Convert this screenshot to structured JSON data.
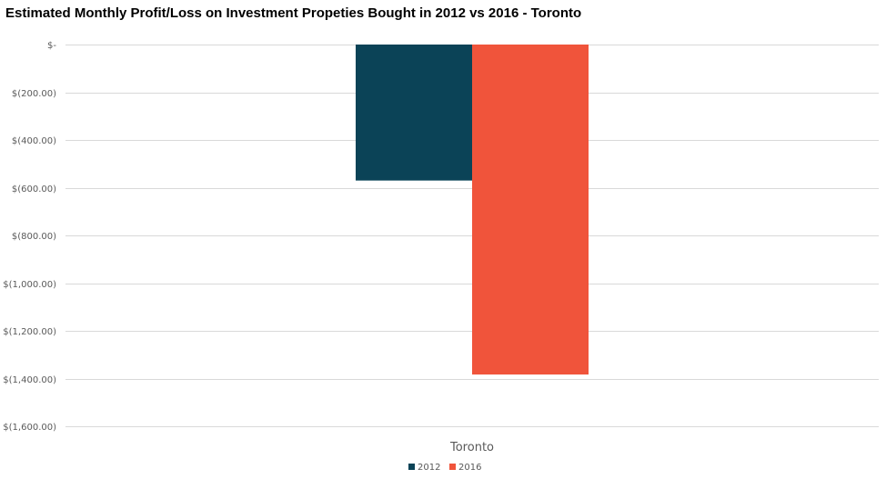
{
  "chart_data": {
    "type": "bar",
    "title": "Estimated Monthly Profit/Loss on Investment Propeties Bought in 2012 vs 2016 - Toronto",
    "categories": [
      "Toronto"
    ],
    "series": [
      {
        "name": "2012",
        "values": [
          -570
        ],
        "color": "#0b4357"
      },
      {
        "name": "2016",
        "values": [
          -1383
        ],
        "color": "#f0543b"
      }
    ],
    "ylim": [
      -1600,
      0
    ],
    "y_ticks": [
      0,
      -200,
      -400,
      -600,
      -800,
      -1000,
      -1200,
      -1400,
      -1600
    ],
    "y_tick_labels": [
      "$-",
      "$(200.00)",
      "$(400.00)",
      "$(600.00)",
      "$(800.00)",
      "$(1,000.00)",
      "$(1,200.00)",
      "$(1,400.00)",
      "$(1,600.00)"
    ],
    "xlabel": "",
    "ylabel": "",
    "grid": true,
    "legend_position": "bottom"
  }
}
